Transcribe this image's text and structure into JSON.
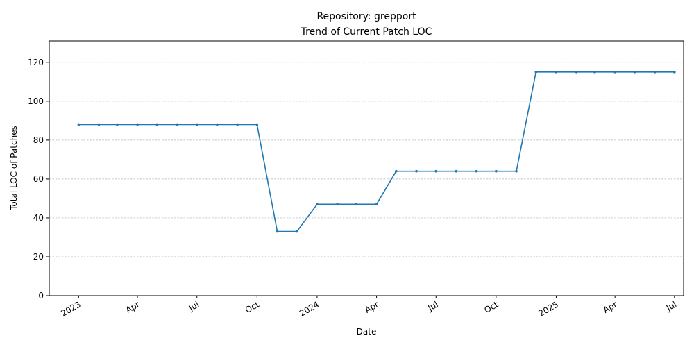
{
  "chart_data": {
    "type": "line",
    "title_line1": "Repository: grepport",
    "title_line2": "Trend of Current Patch LOC",
    "xlabel": "Date",
    "ylabel": "Total LOC of Patches",
    "ylim": [
      0,
      131
    ],
    "xlim": [
      "2022-11-17",
      "2025-07-15"
    ],
    "yticks": [
      0,
      20,
      40,
      60,
      80,
      100,
      120
    ],
    "xticks": [
      {
        "date": "2023-01-01",
        "label": "2023"
      },
      {
        "date": "2023-04-01",
        "label": "Apr"
      },
      {
        "date": "2023-07-01",
        "label": "Jul"
      },
      {
        "date": "2023-10-01",
        "label": "Oct"
      },
      {
        "date": "2024-01-01",
        "label": "2024"
      },
      {
        "date": "2024-04-01",
        "label": "Apr"
      },
      {
        "date": "2024-07-01",
        "label": "Jul"
      },
      {
        "date": "2024-10-01",
        "label": "Oct"
      },
      {
        "date": "2025-01-01",
        "label": "2025"
      },
      {
        "date": "2025-04-01",
        "label": "Apr"
      },
      {
        "date": "2025-07-01",
        "label": "Jul"
      }
    ],
    "grid": "y-dashed",
    "color": "#1f77b4",
    "series": [
      {
        "x": [
          "2023-01-01",
          "2023-02-01",
          "2023-03-01",
          "2023-04-01",
          "2023-05-01",
          "2023-06-01",
          "2023-07-01",
          "2023-08-01",
          "2023-09-01",
          "2023-10-01",
          "2023-11-01",
          "2023-12-01",
          "2024-01-01",
          "2024-02-01",
          "2024-03-01",
          "2024-04-01",
          "2024-05-01",
          "2024-06-01",
          "2024-07-01",
          "2024-08-01",
          "2024-09-01",
          "2024-10-01",
          "2024-11-01",
          "2024-12-01",
          "2025-01-01",
          "2025-02-01",
          "2025-03-01",
          "2025-04-01",
          "2025-05-01",
          "2025-06-01",
          "2025-07-01"
        ],
        "values": [
          88,
          88,
          88,
          88,
          88,
          88,
          88,
          88,
          88,
          88,
          33,
          33,
          47,
          47,
          47,
          47,
          64,
          64,
          64,
          64,
          64,
          64,
          64,
          115,
          115,
          115,
          115,
          115,
          115,
          115,
          115
        ]
      }
    ]
  }
}
